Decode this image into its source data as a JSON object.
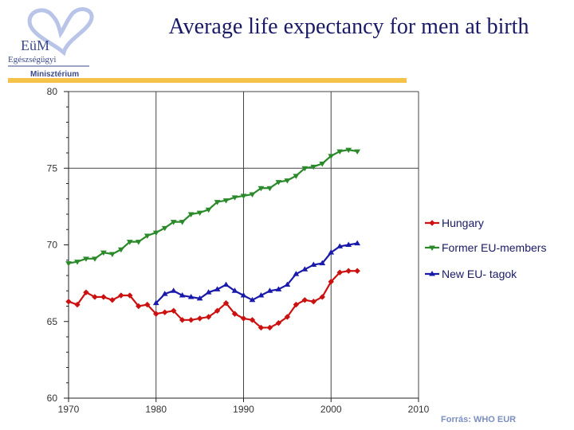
{
  "header": {
    "logo": {
      "line1": "EüM",
      "line2": "Egészségügyi",
      "line3": "Minisztérium",
      "icon": "heart-logo-icon",
      "color": "#9aa8d8"
    },
    "title": "Average life expectancy for men  at birth",
    "accent_color": "#f5c24a"
  },
  "chart_data": {
    "type": "line",
    "title": "Average life expectancy for men  at birth",
    "xlabel": "",
    "ylabel": "",
    "xlim": [
      1970,
      2010
    ],
    "ylim": [
      60,
      80
    ],
    "xticks": [
      1970,
      1980,
      1990,
      2000,
      2010
    ],
    "yticks": [
      60,
      65,
      70,
      75,
      80
    ],
    "grid": "vertical lines at decades, horizontal lines at 75 and 80",
    "legend_position": "right",
    "series": [
      {
        "name": "Hungary",
        "color": "#cc1111",
        "marker": "diamond",
        "x": [
          1970,
          1971,
          1972,
          1973,
          1974,
          1975,
          1976,
          1977,
          1978,
          1979,
          1980,
          1981,
          1982,
          1983,
          1984,
          1985,
          1986,
          1987,
          1988,
          1989,
          1990,
          1991,
          1992,
          1993,
          1994,
          1995,
          1996,
          1997,
          1998,
          1999,
          2000,
          2001,
          2002,
          2003
        ],
        "values": [
          66.3,
          66.1,
          66.9,
          66.6,
          66.6,
          66.4,
          66.7,
          66.7,
          66.0,
          66.1,
          65.5,
          65.6,
          65.7,
          65.1,
          65.1,
          65.2,
          65.3,
          65.7,
          66.2,
          65.5,
          65.2,
          65.1,
          64.6,
          64.6,
          64.9,
          65.3,
          66.1,
          66.4,
          66.3,
          66.6,
          67.6,
          68.2,
          68.3,
          68.3
        ]
      },
      {
        "name": "Former  EU-members",
        "color": "#2a8a2a",
        "marker": "triangle-down",
        "x": [
          1970,
          1971,
          1972,
          1973,
          1974,
          1975,
          1976,
          1977,
          1978,
          1979,
          1980,
          1981,
          1982,
          1983,
          1984,
          1985,
          1986,
          1987,
          1988,
          1989,
          1990,
          1991,
          1992,
          1993,
          1994,
          1995,
          1996,
          1997,
          1998,
          1999,
          2000,
          2001,
          2002,
          2003
        ],
        "values": [
          68.8,
          68.9,
          69.1,
          69.1,
          69.5,
          69.4,
          69.7,
          70.2,
          70.2,
          70.6,
          70.8,
          71.1,
          71.5,
          71.5,
          72.0,
          72.1,
          72.3,
          72.8,
          72.9,
          73.1,
          73.2,
          73.3,
          73.7,
          73.7,
          74.1,
          74.2,
          74.5,
          75.0,
          75.1,
          75.3,
          75.8,
          76.1,
          76.2,
          76.1
        ]
      },
      {
        "name": "New  EU- tagok",
        "color": "#1a1aaa",
        "marker": "triangle-up",
        "x": [
          1980,
          1981,
          1982,
          1983,
          1984,
          1985,
          1986,
          1987,
          1988,
          1989,
          1990,
          1991,
          1992,
          1993,
          1994,
          1995,
          1996,
          1997,
          1998,
          1999,
          2000,
          2001,
          2002,
          2003
        ],
        "values": [
          66.2,
          66.8,
          67.0,
          66.7,
          66.6,
          66.5,
          66.9,
          67.1,
          67.4,
          67.0,
          66.7,
          66.4,
          66.7,
          67.0,
          67.1,
          67.4,
          68.1,
          68.4,
          68.7,
          68.8,
          69.5,
          69.9,
          70.0,
          70.1
        ]
      }
    ]
  },
  "footer": {
    "source": "Forrás: WHO EUR",
    "source_color": "#7b8fc0"
  }
}
